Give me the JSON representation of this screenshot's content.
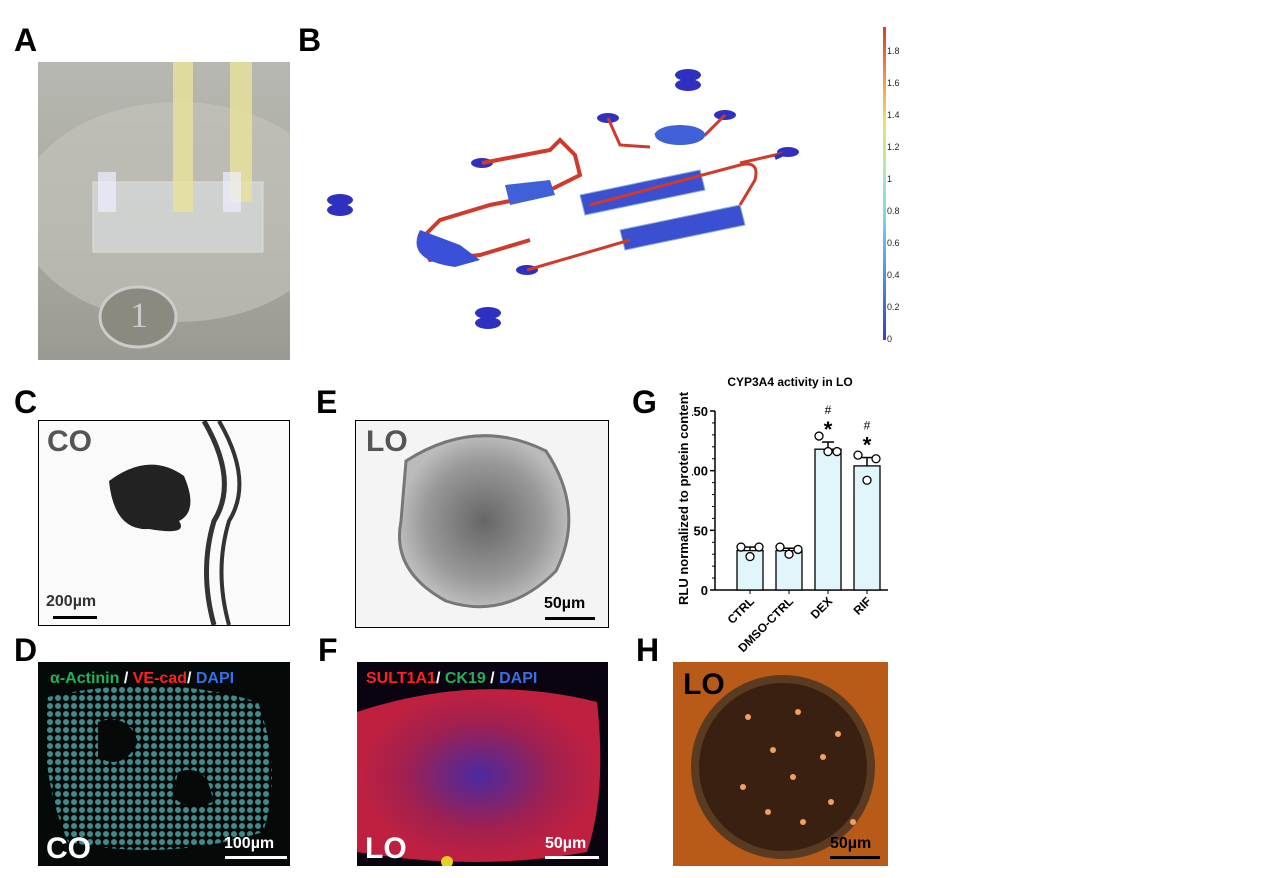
{
  "panels": {
    "A": {
      "label": "A"
    },
    "B": {
      "label": "B",
      "colorbar": {
        "ticks": [
          "0",
          "0.2",
          "0.4",
          "0.6",
          "0.8",
          "1",
          "1.2",
          "1.4",
          "1.6",
          "1.8"
        ],
        "colors": [
          "#3b3bd6",
          "#5aa0e6",
          "#7ed8e8",
          "#b8e6b0",
          "#e8e070",
          "#f0a050",
          "#d83a30"
        ]
      }
    },
    "C": {
      "label": "C",
      "tag": "CO",
      "scale": "200µm"
    },
    "D": {
      "label": "D",
      "tag": "CO",
      "scale": "100µm",
      "stain": [
        {
          "text": "α-Actinin",
          "color": "#22b05a"
        },
        {
          "text": " / ",
          "color": "#ffffff"
        },
        {
          "text": "VE-cad",
          "color": "#ff2020"
        },
        {
          "text": "/ ",
          "color": "#ffffff"
        },
        {
          "text": "DAPI",
          "color": "#3a6ee8"
        }
      ]
    },
    "E": {
      "label": "E",
      "tag": "LO",
      "scale": "50µm"
    },
    "F": {
      "label": "F",
      "tag": "LO",
      "scale": "50µm",
      "stain": [
        {
          "text": "SULT1A1",
          "color": "#ff2020"
        },
        {
          "text": "/ ",
          "color": "#ffffff"
        },
        {
          "text": "CK19",
          "color": "#22b05a"
        },
        {
          "text": " / ",
          "color": "#ffffff"
        },
        {
          "text": "DAPI",
          "color": "#3a6ee8"
        }
      ]
    },
    "G": {
      "label": "G"
    },
    "H": {
      "label": "H",
      "tag": "LO",
      "scale": "50µm"
    }
  },
  "chart_data": {
    "type": "bar",
    "title": "CYP3A4 activity in LO",
    "ylabel": "RLU normalized to protein content",
    "xlabel": "",
    "ylim": [
      0,
      150
    ],
    "yticks": [
      0,
      50,
      100,
      150
    ],
    "categories": [
      "CTRL",
      "DMSO-CTRL",
      "DEX",
      "RIF"
    ],
    "values": [
      33,
      33,
      118,
      104
    ],
    "sem": [
      3,
      2,
      6,
      7
    ],
    "points": [
      [
        36,
        28,
        36
      ],
      [
        36,
        30,
        34
      ],
      [
        129,
        116,
        116
      ],
      [
        113,
        92,
        110
      ]
    ],
    "annotations": [
      "",
      "",
      "#\n*",
      "#\n*"
    ],
    "bar_color": "#e0f6fb",
    "grid": false
  }
}
